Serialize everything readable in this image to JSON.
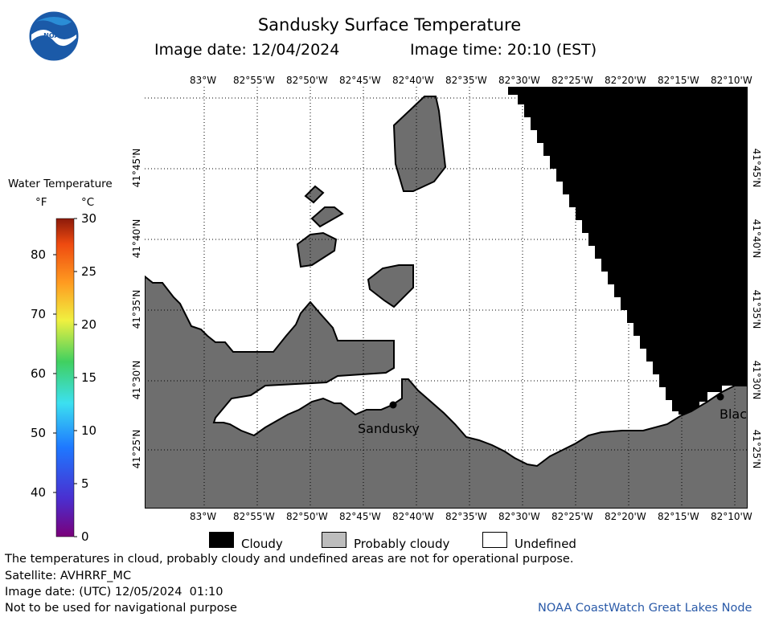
{
  "header": {
    "title": "Sandusky Surface Temperature",
    "image_date_label": "Image date: 12/04/2024",
    "image_time_label": "Image time: 20:10 (EST)"
  },
  "logo": {
    "text": "NOAA",
    "icon": "noaa-logo"
  },
  "map": {
    "longitude_ticks": [
      "83°W",
      "82°55'W",
      "82°50'W",
      "82°45'W",
      "82°40'W",
      "82°35'W",
      "82°30'W",
      "82°25'W",
      "82°20'W",
      "82°15'W",
      "82°10'W"
    ],
    "latitude_ticks": [
      "41°45'N",
      "41°40'N",
      "41°35'N",
      "41°30'N",
      "41°25'N"
    ],
    "places": [
      {
        "name": "Sandusky"
      },
      {
        "name": "Blac"
      }
    ],
    "colors": {
      "land": "#6e6e6e",
      "cloud": "#000000",
      "undefined": "#ffffff"
    }
  },
  "colorbar": {
    "title": "Water Temperature",
    "unit_f": "°F",
    "unit_c": "°C",
    "f_ticks": [
      "40",
      "50",
      "60",
      "70",
      "80"
    ],
    "c_ticks": [
      "0",
      "5",
      "10",
      "15",
      "20",
      "25",
      "30"
    ]
  },
  "legend": {
    "cloudy": "Cloudy",
    "probably_cloudy": "Probably cloudy",
    "undefined": "Undefined"
  },
  "footer": {
    "note": "The temperatures in cloud, probably cloudy and undefined areas are not for operational purpose.",
    "satellite": "Satellite: AVHRRF_MC",
    "utc_date": "Image date: (UTC) 12/05/2024  01:10",
    "navigation": "Not to be used for navigational purpose",
    "credit": "NOAA CoastWatch Great Lakes Node"
  }
}
